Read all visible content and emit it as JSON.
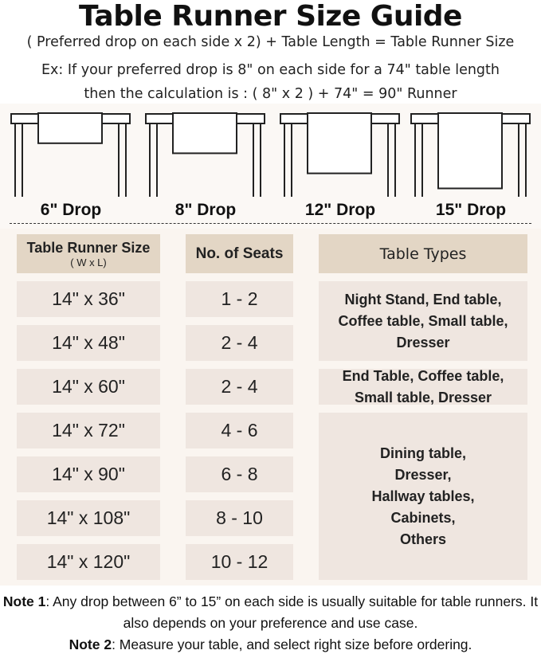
{
  "title": "Table Runner Size Guide",
  "formula": "( Preferred drop on each side x 2) + Table Length = Table Runner Size",
  "example_line1": "Ex: If your preferred drop is 8\" on each side for a 74\" table length",
  "example_line2": "then the calculation is : ( 8\" x 2 ) + 74\" = 90\" Runner",
  "drops": [
    {
      "label": "6\" Drop",
      "inches": 6
    },
    {
      "label": "8\" Drop",
      "inches": 8
    },
    {
      "label": "12\" Drop",
      "inches": 12
    },
    {
      "label": "15\" Drop",
      "inches": 15
    }
  ],
  "table": {
    "headers": {
      "size": "Table Runner Size",
      "size_sub": "( W x L)",
      "seats": "No. of Seats",
      "types": "Table Types"
    },
    "rows": [
      {
        "size": "14\" x 36\"",
        "seats": "1 - 2"
      },
      {
        "size": "14\" x 48\"",
        "seats": "2 - 4"
      },
      {
        "size": "14\" x 60\"",
        "seats": "2 - 4"
      },
      {
        "size": "14\" x 72\"",
        "seats": "4 - 6"
      },
      {
        "size": "14\" x 90\"",
        "seats": "6 - 8"
      },
      {
        "size": "14\" x 108\"",
        "seats": "8 - 10"
      },
      {
        "size": "14\" x 120\"",
        "seats": "10 - 12"
      }
    ],
    "types": [
      "Night Stand, End table, Coffee table, Small table, Dresser",
      "End Table, Coffee table, Small table, Dresser",
      "Dining table, Dresser, Hallway tables, Cabinets, Others"
    ]
  },
  "notes": {
    "note1_label": "Note 1",
    "note1_text": ": Any drop between 6” to 15” on each side is usually suitable for table runners. It also depends on your preference and use case.",
    "note2_label": "Note 2",
    "note2_text": ": Measure your table, and select right size before ordering."
  },
  "colors": {
    "header_cell": "#e3d6c5",
    "body_cell": "#efe6e0",
    "panel": "#faf5f0"
  }
}
